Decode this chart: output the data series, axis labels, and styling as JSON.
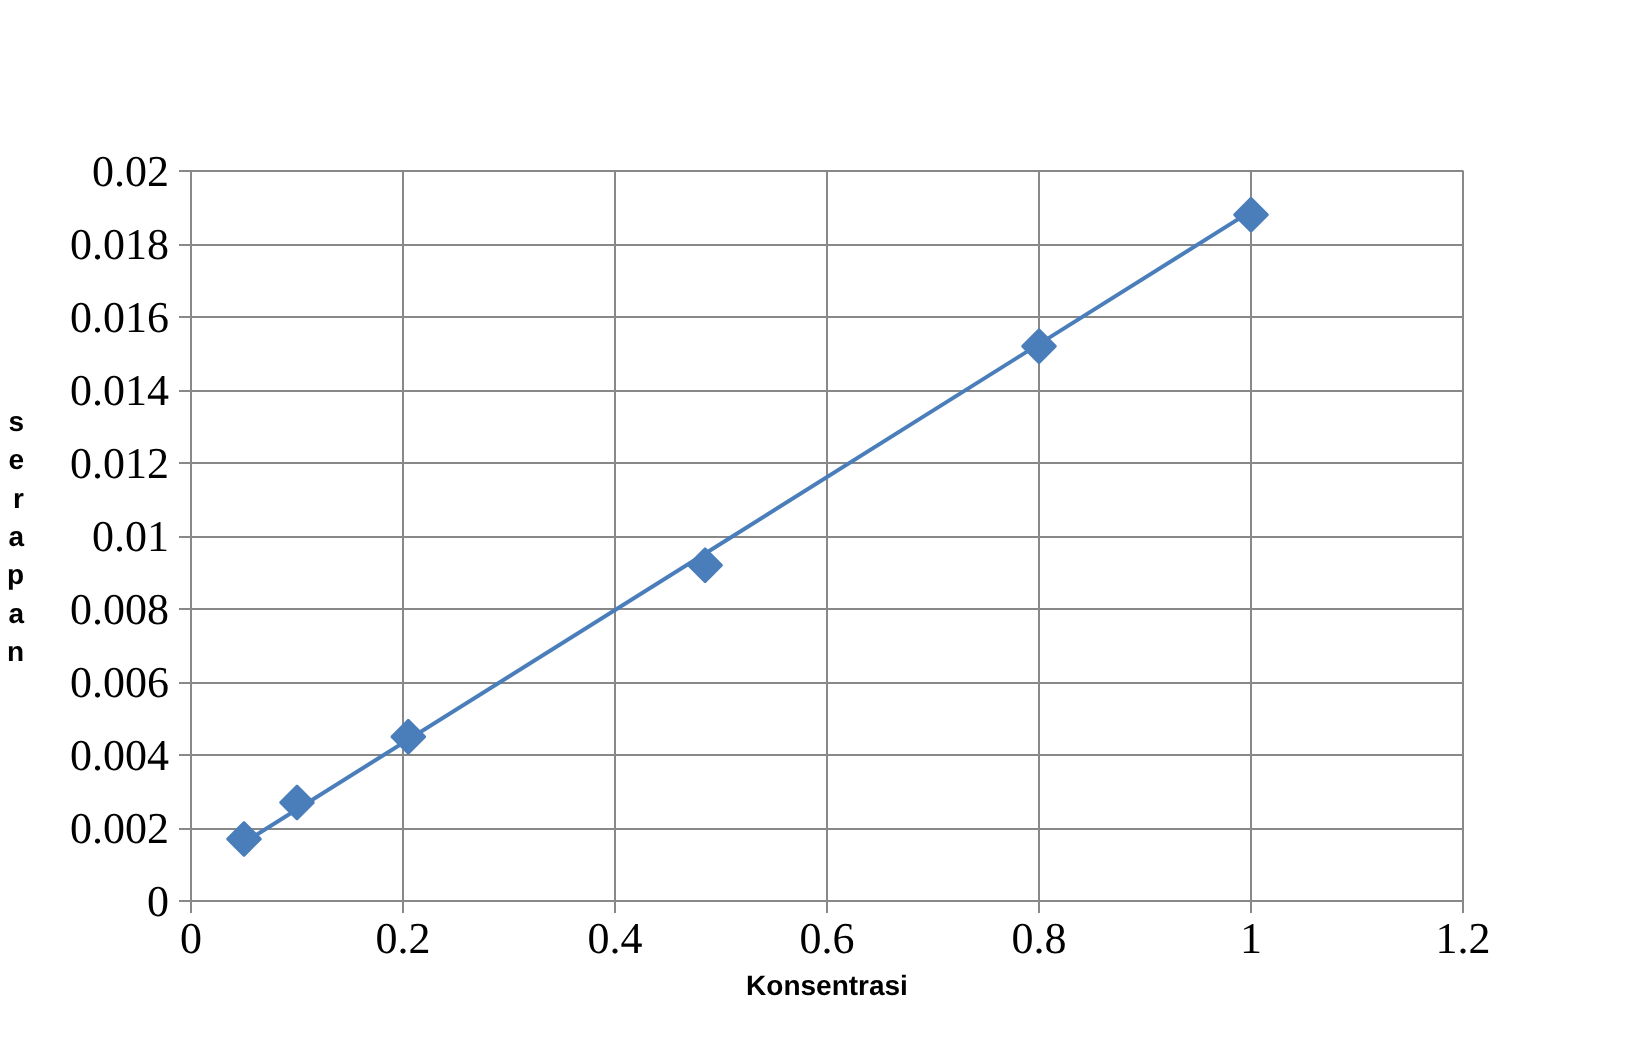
{
  "chart_data": {
    "type": "scatter",
    "xlabel": "Konsentrasi",
    "ylabel": "serapan",
    "xlim": [
      0,
      1.2
    ],
    "ylim": [
      0,
      0.02
    ],
    "xticks": [
      0,
      0.2,
      0.4,
      0.6,
      0.8,
      1,
      1.2
    ],
    "yticks": [
      0,
      0.002,
      0.004,
      0.006,
      0.008,
      0.01,
      0.012,
      0.014,
      0.016,
      0.018,
      0.02
    ],
    "grid": true,
    "marker": "diamond",
    "series": [
      {
        "color": "#4a7ebb",
        "x": [
          0.05,
          0.1,
          0.205,
          0.485,
          0.8,
          1.0
        ],
        "values": [
          0.0017,
          0.0027,
          0.0045,
          0.0092,
          0.0152,
          0.0188
        ]
      },
      {
        "type": "line",
        "color": "#4a7ebb",
        "x": [
          0.05,
          1.0
        ],
        "values": [
          0.0016,
          0.0189
        ],
        "marker": "none"
      }
    ]
  }
}
